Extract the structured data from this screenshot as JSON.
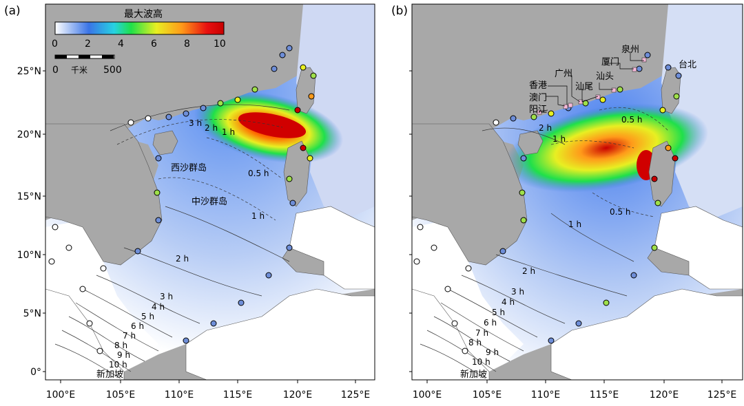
{
  "panels": [
    {
      "letter": "(a)"
    },
    {
      "letter": "(b)"
    }
  ],
  "axes": {
    "x_ticks": [
      "100°E",
      "105°E",
      "110°E",
      "115°E",
      "120°E",
      "125°E"
    ],
    "y_ticks": [
      "0°",
      "5°N",
      "10°N",
      "15°N",
      "20°N",
      "25°N"
    ]
  },
  "colorbar": {
    "title": "最大波高",
    "ticks": [
      "0",
      "2",
      "4",
      "6",
      "8",
      "10"
    ],
    "colors": [
      "#ffffff",
      "#3a74e6",
      "#27d2e2",
      "#1fe04a",
      "#e8ef22",
      "#ff9a1a",
      "#e81010",
      "#c80000"
    ]
  },
  "scalebar": {
    "start": "0",
    "unit": "千米",
    "end": "500"
  },
  "map_colors": {
    "land": "#a8a8a8",
    "sea": "#ffffff",
    "wave_low": "#3a74e6",
    "wave_high": "#d40000"
  },
  "panel_a_labels": {
    "xisha": "西沙群岛",
    "zhongsha": "中沙群岛",
    "singapore": "新加坡",
    "contours": [
      "3 h",
      "2 h",
      "1 h",
      "0.5 h",
      "1 h",
      "2 h",
      "3 h",
      "4 h",
      "5 h",
      "6 h",
      "7 h",
      "8 h",
      "9 h",
      "10 h"
    ]
  },
  "panel_b_labels": {
    "cities": [
      "泉州",
      "厦门",
      "台北",
      "广州",
      "汕头",
      "香港",
      "汕尾",
      "澳门",
      "阳江"
    ],
    "singapore": "新加坡",
    "contours": [
      "0.5 h",
      "2 h",
      "1 h",
      "0.5 h",
      "1 h",
      "2 h",
      "3 h",
      "4 h",
      "5 h",
      "6 h",
      "7 h",
      "8 h",
      "9 h",
      "10 h"
    ]
  }
}
